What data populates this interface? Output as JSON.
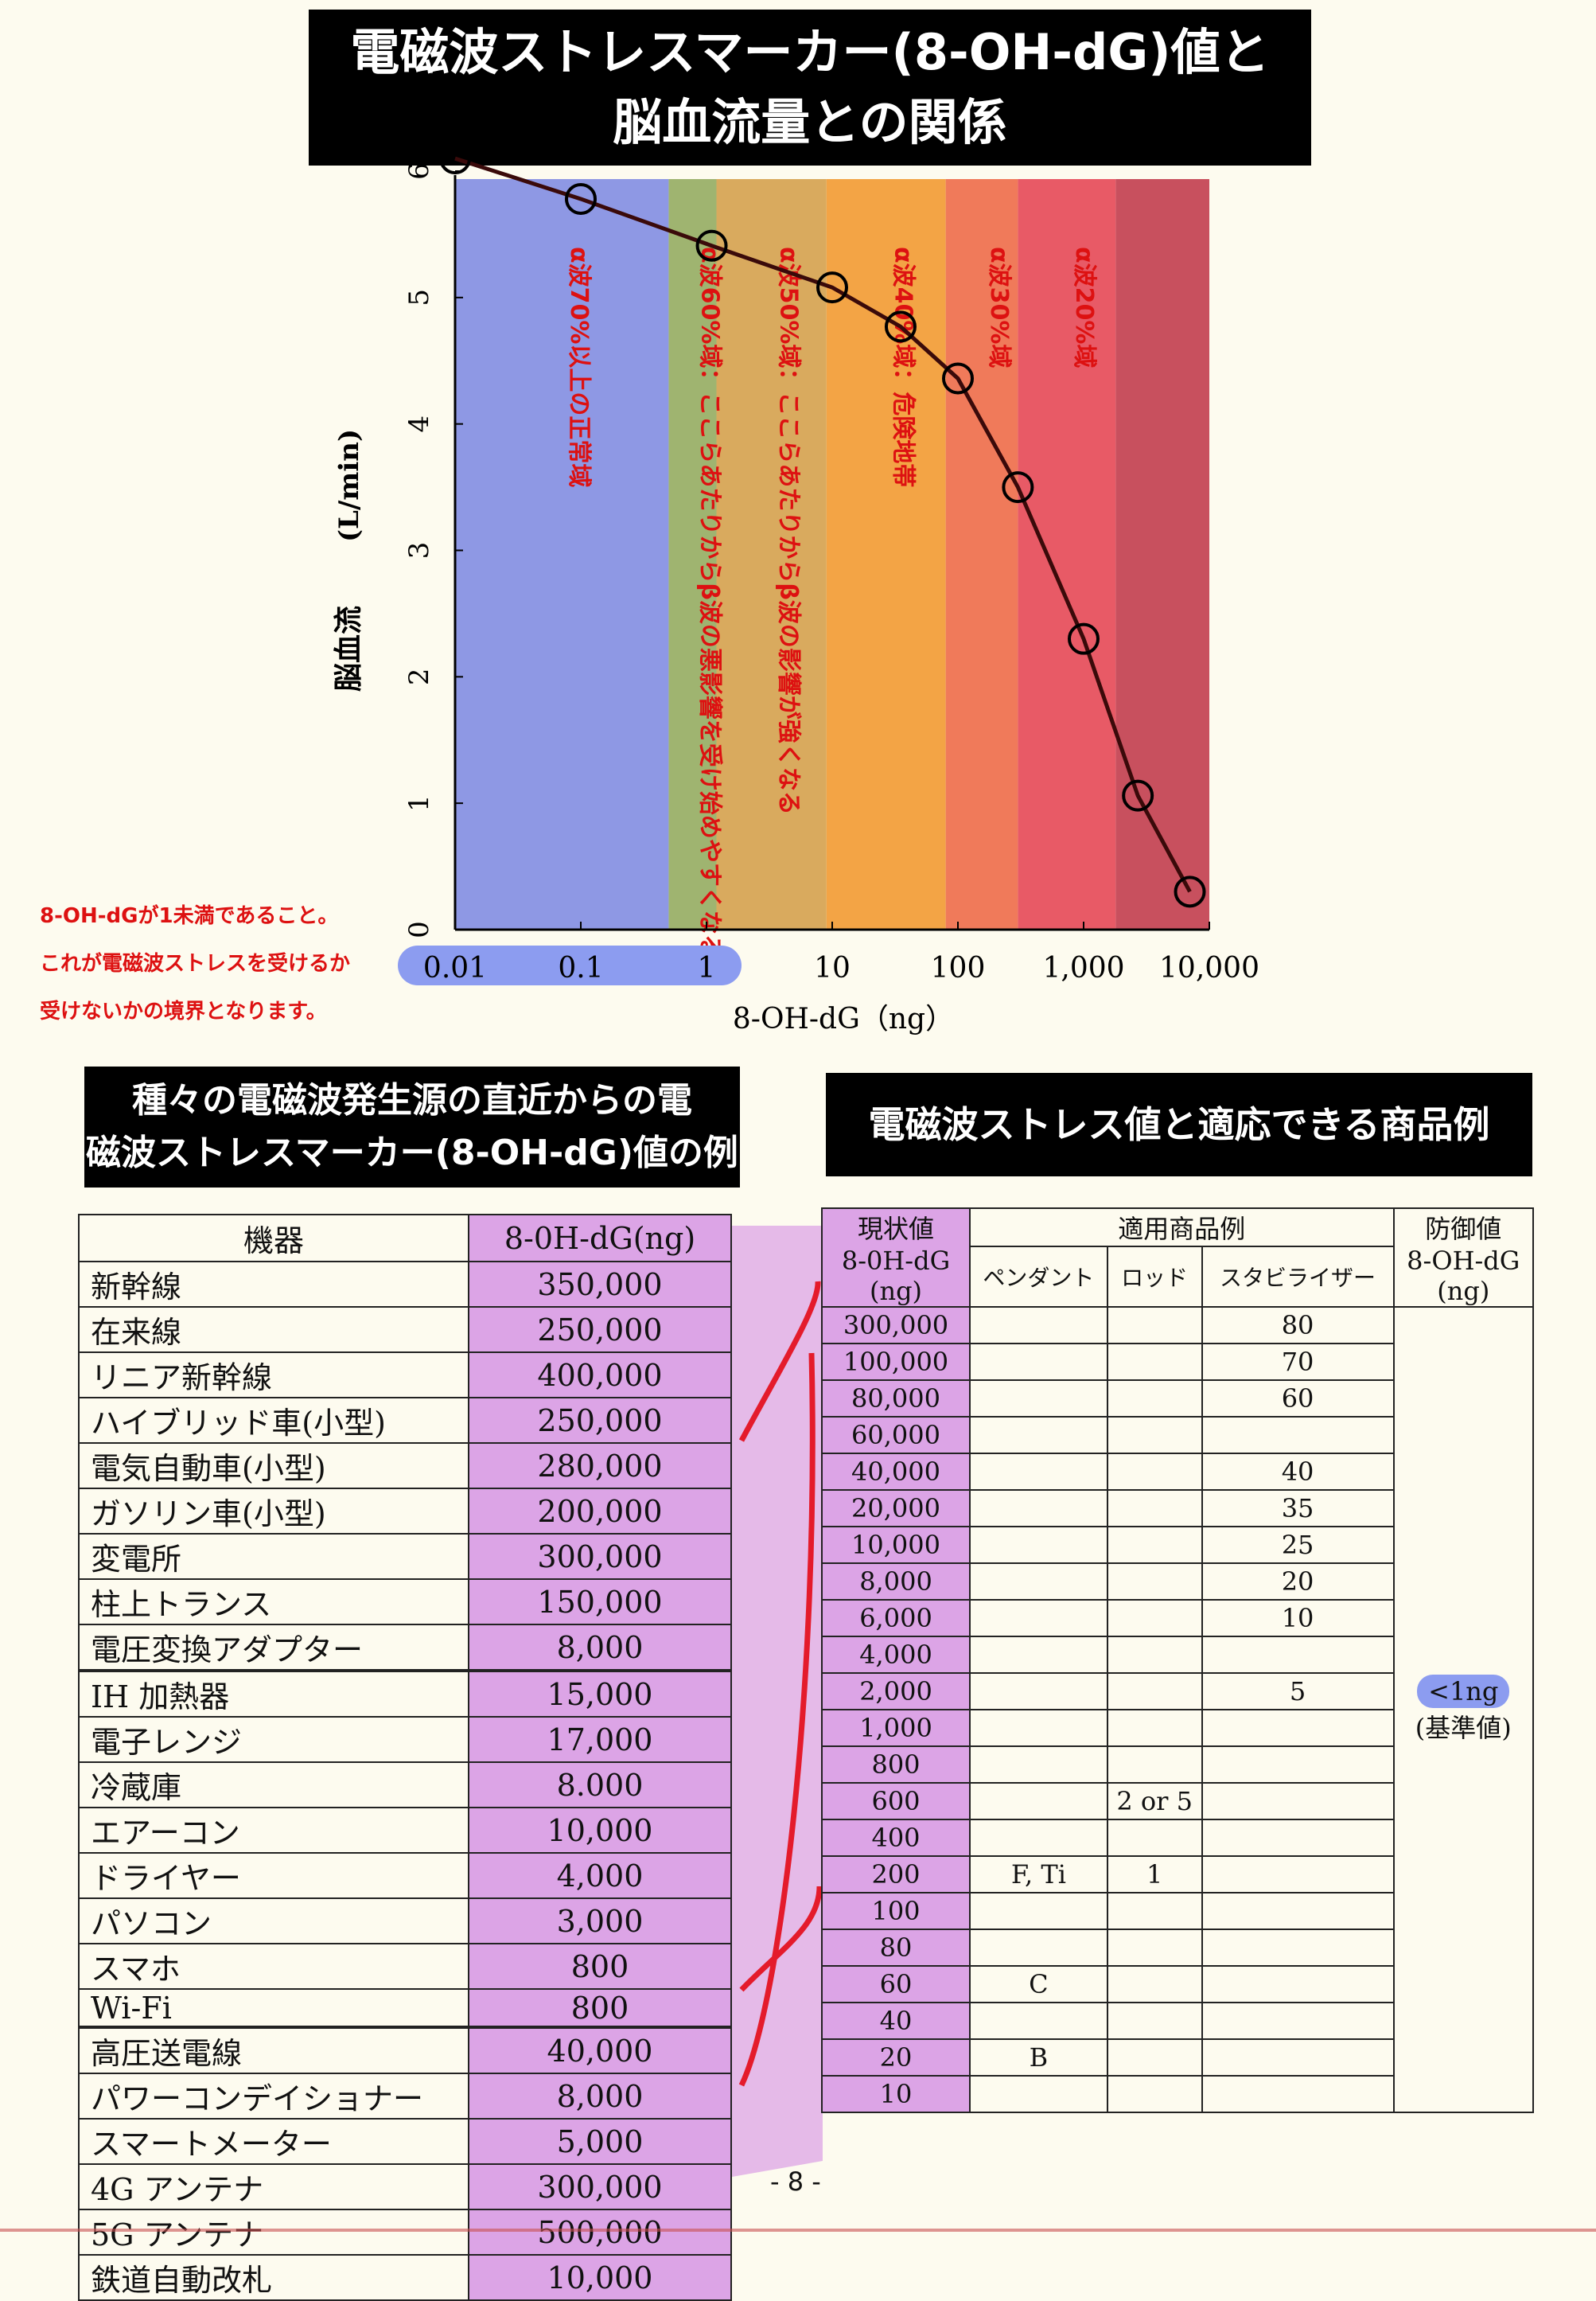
{
  "title": {
    "line1": "電磁波ストレスマーカー(8-OH-dG)値と",
    "line2": "脳血流量との関係"
  },
  "chart_data": {
    "type": "line",
    "xlabel": "8-OH-dG（ng）",
    "ylabel": "脳血流",
    "ylabel_unit": "(L/min)",
    "x_scale": "log",
    "xlim": [
      0.01,
      10000
    ],
    "ylim": [
      0,
      6
    ],
    "x_tick_labels": [
      "0.01",
      "0.1",
      "1",
      "10",
      "100",
      "1,000",
      "10,000"
    ],
    "y_tick_labels": [
      "0",
      "1",
      "2",
      "3",
      "4",
      "5",
      "6"
    ],
    "points": [
      {
        "x": 0.01,
        "y": 6.1
      },
      {
        "x": 0.1,
        "y": 5.78
      },
      {
        "x": 1.1,
        "y": 5.41
      },
      {
        "x": 10,
        "y": 5.08
      },
      {
        "x": 35,
        "y": 4.77
      },
      {
        "x": 100,
        "y": 4.36
      },
      {
        "x": 300,
        "y": 3.5
      },
      {
        "x": 1000,
        "y": 2.3
      },
      {
        "x": 2700,
        "y": 1.06
      },
      {
        "x": 7000,
        "y": 0.3
      }
    ],
    "bands": [
      {
        "from": 0.01,
        "to": 0.5,
        "color": "#8e98e4",
        "label": "α波70%以上の正常域"
      },
      {
        "from": 0.5,
        "to": 1.2,
        "color": "#9fb470",
        "label": "α波60%域：ここらあたりからβ波の悪影響を受け始めやすくなる"
      },
      {
        "from": 1.2,
        "to": 9,
        "color": "#d9aa5e",
        "label": "α波50%域：ここらあたりからβ波の影響が強くなる"
      },
      {
        "from": 9,
        "to": 80,
        "color": "#f3a445",
        "label": "α波40%域：危険地帯"
      },
      {
        "from": 80,
        "to": 300,
        "color": "#f07a5a",
        "label": "α波30%域"
      },
      {
        "from": 300,
        "to": 1800,
        "color": "#e85a66",
        "label": "α波20%域"
      },
      {
        "from": 1800,
        "to": 10000,
        "color": "#c8505e",
        "label": ""
      }
    ]
  },
  "note": {
    "line1": "8-OH-dGが1未満であること。",
    "line2": "これが電磁波ストレスを受けるか",
    "line3": "受けないかの境界となります。"
  },
  "left_section": {
    "title_line1": "種々の電磁波発生源の直近からの電",
    "title_line2": "磁波ストレスマーカー(8-OH-dG)値の例"
  },
  "right_section": {
    "title": "電磁波ストレス値と適応できる商品例"
  },
  "device_table": {
    "headers": [
      "機器",
      "8-0H-dG(ng)"
    ],
    "rows": [
      [
        "新幹線",
        "350,000"
      ],
      [
        "在来線",
        "250,000"
      ],
      [
        "リニア新幹線",
        "400,000"
      ],
      [
        "ハイブリッド車(小型)",
        "250,000"
      ],
      [
        "電気自動車(小型)",
        "280,000"
      ],
      [
        "ガソリン車(小型)",
        "200,000"
      ],
      [
        "変電所",
        "300,000"
      ],
      [
        "柱上トランス",
        "150,000"
      ],
      [
        "電圧変換アダプター",
        "8,000"
      ],
      [
        "IH 加熱器",
        "15,000"
      ],
      [
        "電子レンジ",
        "17,000"
      ],
      [
        "冷蔵庫",
        "8.000"
      ],
      [
        "エアーコン",
        "10,000"
      ],
      [
        "ドライヤー",
        "4,000"
      ],
      [
        "パソコン",
        "3,000"
      ],
      [
        "スマホ",
        "800"
      ],
      [
        "Wi-Fi",
        "800"
      ],
      [
        "高圧送電線",
        "40,000"
      ],
      [
        "パワーコンデイショナー",
        "8,000"
      ],
      [
        "スマートメーター",
        "5,000"
      ],
      [
        "4G アンテナ",
        "300,000"
      ],
      [
        "5G アンテナ",
        "500,000"
      ],
      [
        "鉄道自動改札",
        "10,000"
      ]
    ]
  },
  "product_table": {
    "header_current": [
      "現状値",
      "8-0H-dG",
      "(ng)"
    ],
    "header_products": "適用商品例",
    "header_defense": [
      "防御値",
      "8-OH-dG",
      "(ng)"
    ],
    "sub_headers": [
      "ペンダント",
      "ロッド",
      "スタビライザー"
    ],
    "values": [
      "300,000",
      "100,000",
      "80,000",
      "60,000",
      "40,000",
      "20,000",
      "10,000",
      "8,000",
      "6,000",
      "4,000",
      "2,000",
      "1,000",
      "800",
      "600",
      "400",
      "200",
      "100",
      "80",
      "60",
      "40",
      "20",
      "10"
    ],
    "stabilizer": [
      "80",
      "70",
      "60",
      "",
      "40",
      "35",
      "25",
      "20",
      "10",
      "",
      "5",
      "",
      "",
      "",
      "",
      "",
      "",
      "",
      "",
      "",
      "",
      ""
    ],
    "pendant": [
      "",
      "",
      "",
      "",
      "",
      "",
      "",
      "",
      "",
      "",
      "",
      "",
      "",
      "",
      "",
      "F, Ti",
      "",
      "",
      "C",
      "",
      "B",
      ""
    ],
    "rod": [
      "",
      "",
      "",
      "",
      "",
      "",
      "",
      "",
      "",
      "",
      "",
      "",
      "",
      "2 or 5",
      "",
      "1",
      "",
      "",
      "",
      "",
      "",
      ""
    ],
    "defense_value": "<1ng",
    "defense_note": "(基準値)"
  },
  "page_number": "- 8 -"
}
